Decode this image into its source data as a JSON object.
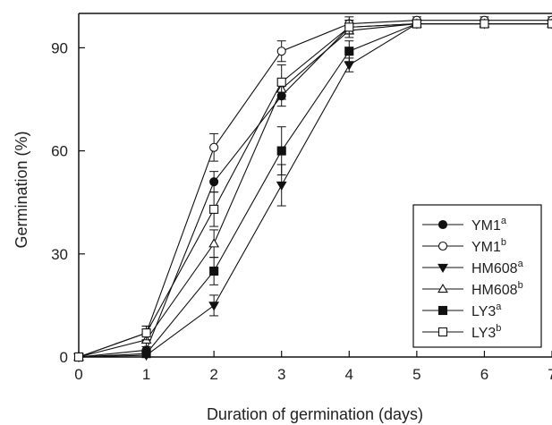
{
  "chart_data": {
    "type": "line",
    "title": "",
    "xlabel": "Duration of germination (days)",
    "ylabel": "Germination (%)",
    "xlim": [
      0,
      7
    ],
    "ylim": [
      0,
      100
    ],
    "xticks": [
      "0",
      "1",
      "2",
      "3",
      "4",
      "5",
      "6",
      "7"
    ],
    "yticks": [
      "0",
      "30",
      "60",
      "90"
    ],
    "grid": false,
    "legend_position": "bottom-right",
    "x": [
      0,
      1,
      2,
      3,
      4,
      5,
      6,
      7
    ],
    "series": [
      {
        "name": "YM1",
        "sup": "a",
        "marker": "circle-filled",
        "values": [
          0,
          2,
          51,
          76,
          96,
          97,
          97,
          97
        ],
        "errors": [
          0,
          1,
          3,
          3,
          2,
          1,
          1,
          1
        ]
      },
      {
        "name": "YM1",
        "sup": "b",
        "marker": "circle-open",
        "values": [
          0,
          7,
          61,
          89,
          97,
          98,
          98,
          98
        ],
        "errors": [
          0,
          2,
          4,
          3,
          2,
          1,
          1,
          1
        ]
      },
      {
        "name": "HM608",
        "sup": "a",
        "marker": "triangle-down-filled",
        "values": [
          0,
          0.5,
          15,
          50,
          85,
          97,
          97,
          97
        ],
        "errors": [
          0,
          0.5,
          3,
          6,
          2,
          1,
          1,
          1
        ]
      },
      {
        "name": "HM608",
        "sup": "b",
        "marker": "triangle-up-open",
        "values": [
          0,
          5,
          33,
          78,
          95,
          97,
          97,
          97
        ],
        "errors": [
          0,
          2,
          4,
          3,
          2,
          1,
          1,
          1
        ]
      },
      {
        "name": "LY3",
        "sup": "a",
        "marker": "square-filled",
        "values": [
          0,
          1,
          25,
          60,
          89,
          97,
          97,
          97
        ],
        "errors": [
          0,
          1,
          4,
          7,
          3,
          1,
          1,
          1
        ]
      },
      {
        "name": "LY3",
        "sup": "b",
        "marker": "square-open",
        "values": [
          0,
          7,
          43,
          80,
          96,
          97,
          97,
          97
        ],
        "errors": [
          0,
          2,
          5,
          5,
          2,
          1,
          1,
          1
        ]
      }
    ]
  }
}
